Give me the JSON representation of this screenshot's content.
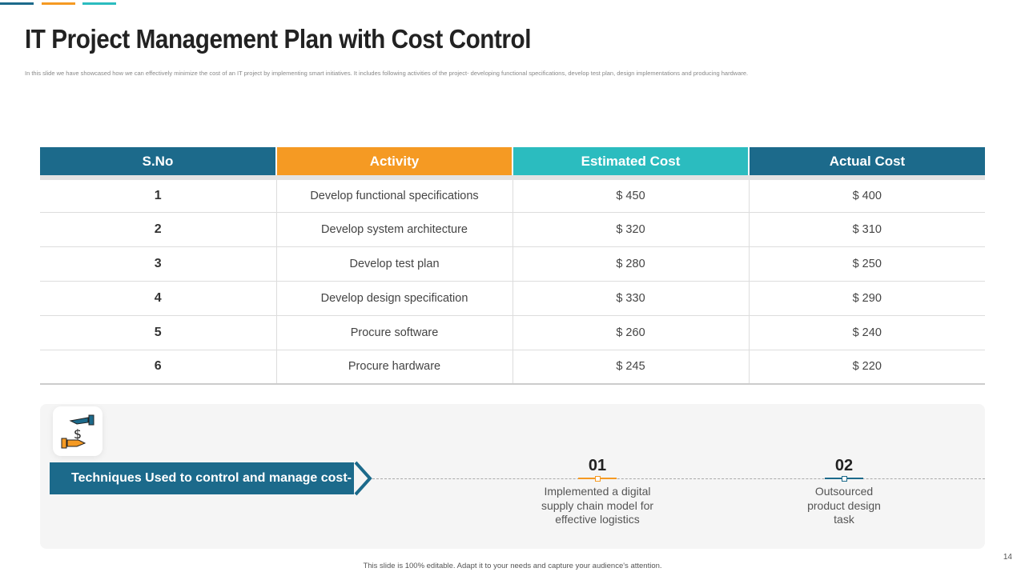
{
  "colors": {
    "dark_teal": "#1c6a8b",
    "orange": "#f59a23",
    "cyan": "#2bbcbf"
  },
  "title": "IT Project Management  Plan with Cost Control",
  "subtitle": "In this slide we  have showcased  how we  can effectively minimize the cost of an IT project by implementing smart initiatives. It includes following activities of the project- developing functional specifications, develop test plan, design implementations and producing  hardware.",
  "table": {
    "headers": [
      "S.No",
      "Activity",
      "Estimated Cost",
      "Actual Cost"
    ],
    "rows": [
      [
        "1",
        "Develop functional specifications",
        "$ 450",
        "$ 400"
      ],
      [
        "2",
        "Develop system architecture",
        "$ 320",
        "$ 310"
      ],
      [
        "3",
        "Develop test plan",
        "$ 280",
        "$ 250"
      ],
      [
        "4",
        "Develop design specification",
        "$ 330",
        "$ 290"
      ],
      [
        "5",
        "Procure software",
        "$ 260",
        "$ 240"
      ],
      [
        "6",
        "Procure hardware",
        "$ 245",
        "$ 220"
      ]
    ]
  },
  "techniques": {
    "icon": "hand-dollar-icon",
    "banner": "Techniques Used to control and manage cost-",
    "steps": [
      {
        "num": "01",
        "text": "Implemented a digital supply chain model for effective logistics"
      },
      {
        "num": "02",
        "text": "Outsourced product design task"
      }
    ]
  },
  "footer": "This slide is 100% editable. Adapt it to your needs and capture your audience's attention.",
  "page_number": "14"
}
